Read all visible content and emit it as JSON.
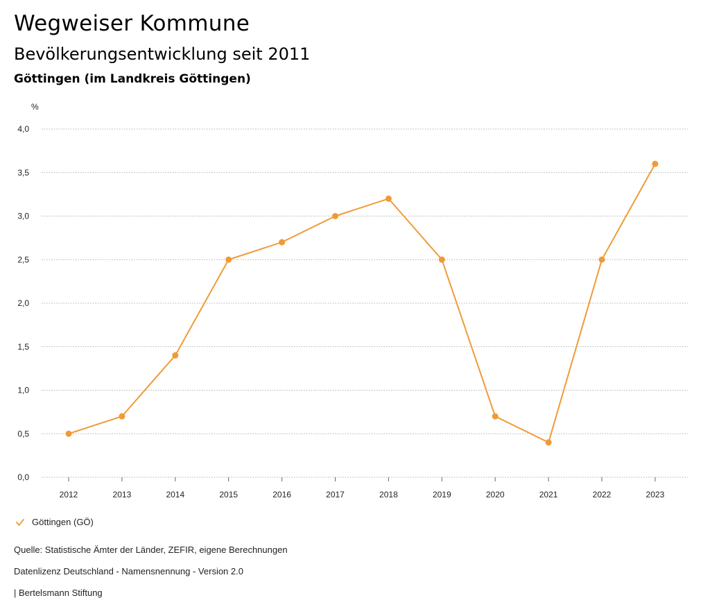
{
  "header": {
    "title": "Wegweiser Kommune",
    "subtitle": "Bevölkerungsentwicklung seit 2011",
    "region": "Göttingen (im Landkreis Göttingen)"
  },
  "chart_data": {
    "type": "line",
    "ylabel": "%",
    "xlabel": "",
    "ylim": [
      0,
      4
    ],
    "yticks": [
      0,
      0.5,
      1,
      1.5,
      2,
      2.5,
      3,
      3.5,
      4
    ],
    "ytick_labels": [
      "0,0",
      "0,5",
      "1,0",
      "1,5",
      "2,0",
      "2,5",
      "3,0",
      "3,5",
      "4,0"
    ],
    "categories": [
      "2012",
      "2013",
      "2014",
      "2015",
      "2016",
      "2017",
      "2018",
      "2019",
      "2020",
      "2021",
      "2022",
      "2023"
    ],
    "series": [
      {
        "name": "Göttingen (GÖ)",
        "color": "#f09a36",
        "values": [
          0.5,
          0.7,
          1.4,
          2.5,
          2.7,
          3.0,
          3.2,
          2.5,
          0.7,
          0.4,
          2.5,
          3.6
        ]
      }
    ],
    "grid": true,
    "legend_position": "bottom-left"
  },
  "legend": {
    "label": "Göttingen (GÖ)",
    "icon": "check-icon"
  },
  "footer": {
    "source": "Quelle: Statistische Ämter der Länder, ZEFIR, eigene Berechnungen",
    "license": "Datenlizenz Deutschland - Namensnennung - Version 2.0",
    "publisher": "| Bertelsmann Stiftung"
  }
}
